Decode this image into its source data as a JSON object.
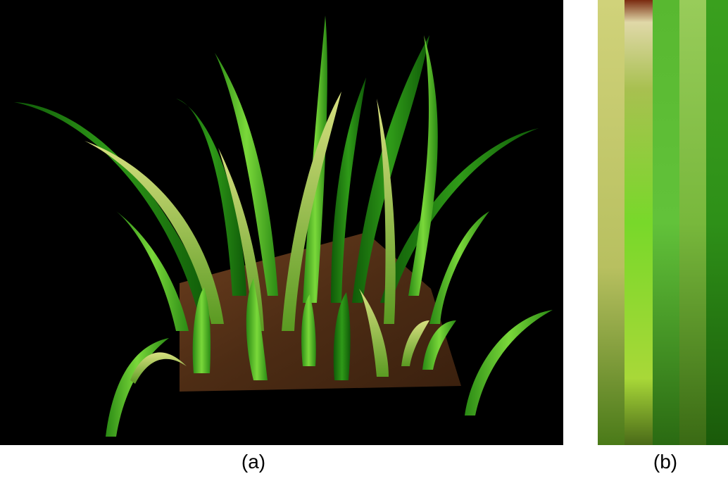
{
  "figure": {
    "panel_a": {
      "caption": "(a)"
    },
    "panel_b": {
      "caption": "(b)"
    }
  },
  "colors": {
    "background": "#000000",
    "soil": "#5a3418",
    "grass_dark": "#1f7a12",
    "grass_mid": "#3fae1e",
    "grass_light": "#8fe04a",
    "grass_yellow": "#c8d070"
  }
}
